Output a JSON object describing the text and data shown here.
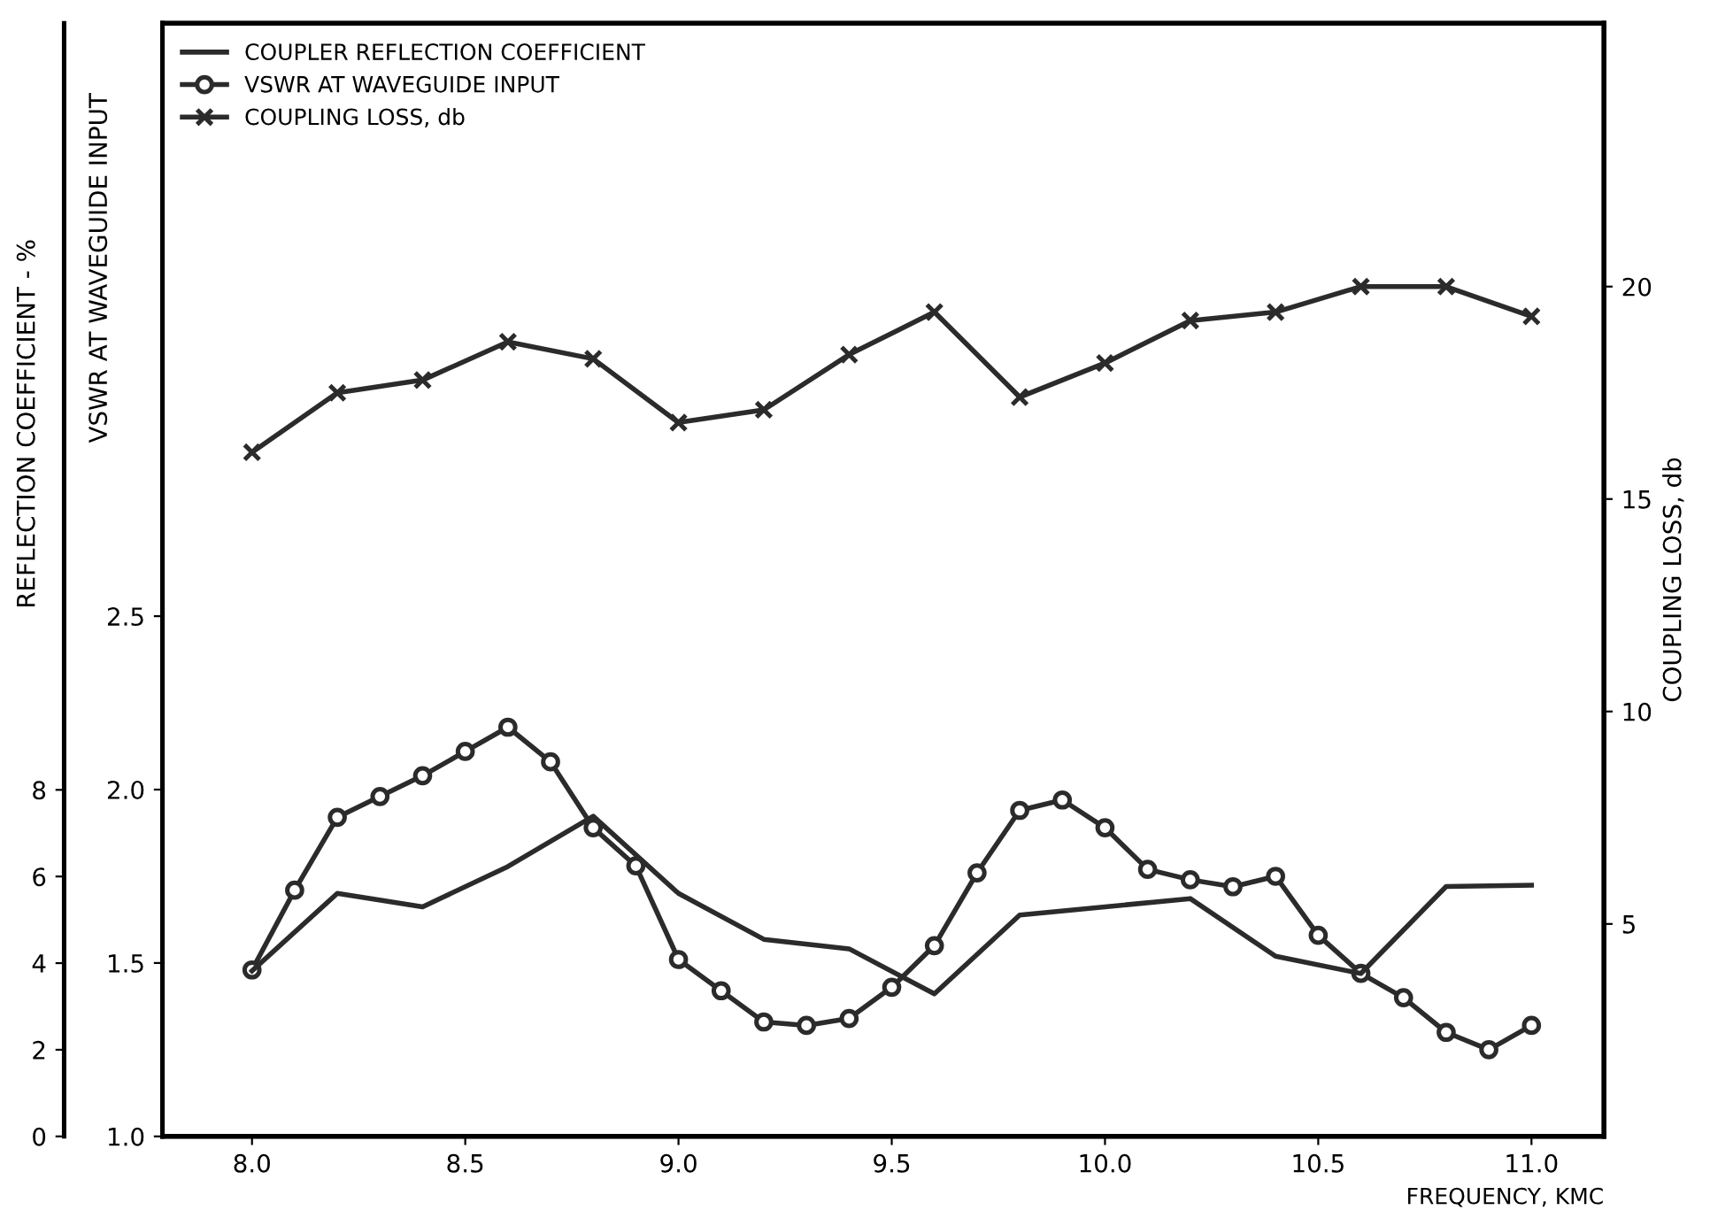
{
  "chart_data": {
    "type": "line",
    "xlabel": "FREQUENCY, KMC",
    "ylabel": "VSWR AT WAVEGUIDE INPUT",
    "y2label": "COUPLING LOSS, db",
    "y3label": "REFLECTION COEFFICIENT - %",
    "xlim": [
      7.79,
      11.17
    ],
    "xticks": [
      {
        "value": 8,
        "label": "8.0"
      },
      8.5,
      {
        "value": 9,
        "label": "9.0"
      },
      9.5,
      {
        "value": 10,
        "label": "10.0"
      },
      10.5,
      {
        "value": 11,
        "label": "11.0"
      }
    ],
    "ylim": [
      1.0,
      4.21
    ],
    "yticks": [
      {
        "value": 1,
        "label": "1.0"
      },
      1.5,
      {
        "value": 2,
        "label": "2.0"
      },
      2.5
    ],
    "y2lim": [
      0,
      26.2
    ],
    "y2ticks": [
      5,
      10,
      15,
      20
    ],
    "y3lim": [
      0,
      25.7
    ],
    "y3ticks": [
      0,
      2,
      4,
      6,
      8
    ],
    "grid": false,
    "legend": "top left",
    "series": [
      {
        "name": "COUPLER REFLECTION COEFFICIENT",
        "color": "#2b2b2b",
        "axis": "y3",
        "marker": "none",
        "x": [
          8.0,
          8.2,
          8.4,
          8.6,
          8.8,
          9.0,
          9.2,
          9.4,
          9.6,
          9.8,
          10.2,
          10.4,
          10.6,
          10.8,
          11.0
        ],
        "values": [
          3.82,
          5.61,
          5.3,
          6.23,
          7.39,
          5.61,
          4.55,
          4.33,
          3.29,
          5.11,
          5.49,
          4.16,
          3.76,
          5.77,
          5.8
        ]
      },
      {
        "name": "VSWR AT WAVEGUIDE INPUT",
        "color": "#2b2b2b",
        "axis": "y",
        "marker": "circle",
        "x": [
          8.0,
          8.1,
          8.2,
          8.3,
          8.4,
          8.5,
          8.6,
          8.7,
          8.8,
          8.9,
          9.0,
          9.1,
          9.2,
          9.3,
          9.4,
          9.5,
          9.6,
          9.7,
          9.8,
          9.9,
          10.0,
          10.1,
          10.2,
          10.3,
          10.4,
          10.5,
          10.6,
          10.7,
          10.8,
          10.9,
          11.0
        ],
        "values": [
          1.48,
          1.71,
          1.92,
          1.98,
          2.04,
          2.11,
          2.18,
          2.08,
          1.89,
          1.78,
          1.51,
          1.42,
          1.33,
          1.32,
          1.34,
          1.43,
          1.55,
          1.76,
          1.94,
          1.97,
          1.89,
          1.77,
          1.74,
          1.72,
          1.75,
          1.58,
          1.47,
          1.4,
          1.3,
          1.25,
          1.32
        ]
      },
      {
        "name": "COUPLING LOSS, db",
        "color": "#2b2b2b",
        "axis": "y2",
        "marker": "cross",
        "x": [
          8.0,
          8.2,
          8.4,
          8.6,
          8.8,
          9.0,
          9.2,
          9.4,
          9.6,
          9.8,
          10.0,
          10.2,
          10.4,
          10.6,
          10.8,
          11.0
        ],
        "values": [
          16.1,
          17.5,
          17.8,
          18.7,
          18.3,
          16.8,
          17.1,
          18.4,
          19.4,
          17.4,
          18.2,
          19.2,
          19.4,
          20.0,
          20.0,
          19.3
        ]
      }
    ]
  }
}
